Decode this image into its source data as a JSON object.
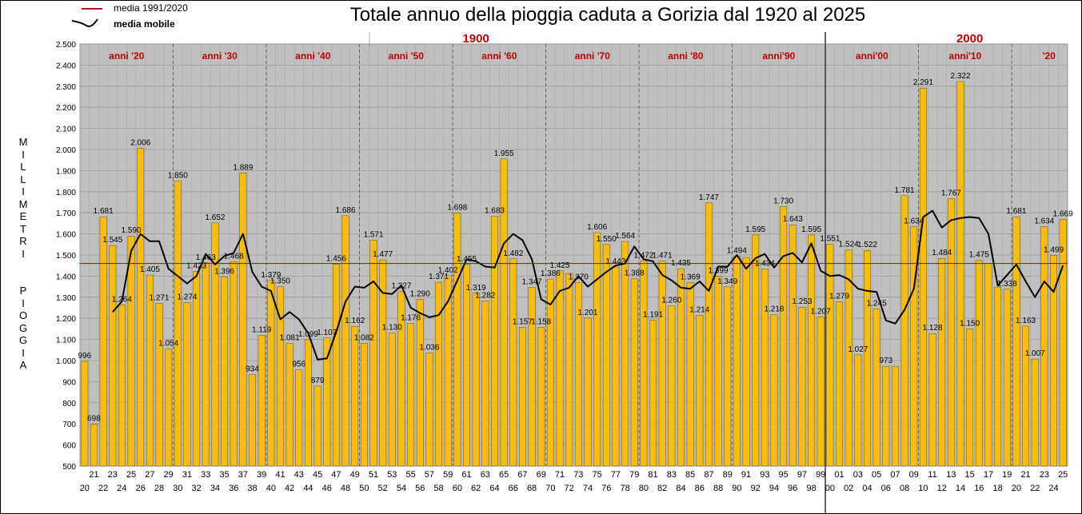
{
  "chart_data": {
    "type": "bar",
    "title": "Totale annuo della pioggia caduta a Gorizia dal 1920 al 2025",
    "ylabel": "MILLIMETRI PIOGGIA",
    "ylim": [
      500,
      2500
    ],
    "ytick_step": 100,
    "grid": true,
    "legend_position": "top-left",
    "legend": [
      {
        "label": "media 1991/2020",
        "kind": "line",
        "color": "#b11a1a"
      },
      {
        "label": "media mobile",
        "kind": "curve",
        "color": "#000000"
      }
    ],
    "mean_1991_2020": 1460,
    "bar_color": "#f9bd0f",
    "plot_background": "#c0c0c0",
    "x_labels": [
      "20",
      "21",
      "22",
      "23",
      "24",
      "25",
      "26",
      "27",
      "28",
      "29",
      "30",
      "31",
      "32",
      "33",
      "34",
      "35",
      "36",
      "37",
      "38",
      "39",
      "40",
      "41",
      "42",
      "43",
      "44",
      "45",
      "46",
      "47",
      "48",
      "49",
      "50",
      "51",
      "52",
      "53",
      "54",
      "55",
      "56",
      "57",
      "58",
      "59",
      "60",
      "61",
      "62",
      "63",
      "64",
      "65",
      "66",
      "67",
      "68",
      "69",
      "70",
      "71",
      "72",
      "73",
      "74",
      "75",
      "76",
      "77",
      "78",
      "79",
      "80",
      "81",
      "82",
      "83",
      "84",
      "85",
      "86",
      "87",
      "88",
      "89",
      "90",
      "91",
      "92",
      "93",
      "94",
      "95",
      "96",
      "97",
      "98",
      "99",
      "00",
      "01",
      "02",
      "03",
      "04",
      "05",
      "06",
      "07",
      "08",
      "09",
      "10",
      "11",
      "12",
      "13",
      "14",
      "15",
      "16",
      "17",
      "18",
      "19",
      "20",
      "21",
      "22",
      "23",
      "24",
      "25"
    ],
    "values": [
      996,
      698,
      1681,
      1545,
      1264,
      1590,
      2006,
      1405,
      1271,
      1054,
      1850,
      1274,
      1423,
      1463,
      1652,
      1396,
      1468,
      1889,
      934,
      1119,
      1379,
      1350,
      1081,
      956,
      1099,
      879,
      1107,
      1456,
      1686,
      1162,
      1082,
      1571,
      1477,
      1130,
      1327,
      1176,
      1290,
      1036,
      1371,
      1402,
      1698,
      1455,
      1319,
      1282,
      1683,
      1955,
      1482,
      1157,
      1347,
      1158,
      1386,
      1425,
      1413,
      1370,
      1201,
      1606,
      1550,
      1443,
      1564,
      1388,
      1472,
      1191,
      1471,
      1260,
      1435,
      1369,
      1214,
      1747,
      1399,
      1349,
      1494,
      1488,
      1595,
      1434,
      1218,
      1730,
      1643,
      1253,
      1595,
      1207,
      1551,
      1279,
      1524,
      1027,
      1522,
      1245,
      973,
      973,
      1781,
      1634,
      2291,
      1128,
      1484,
      1767,
      2322,
      1150,
      1475,
      1460,
      1348,
      1338,
      1681,
      1163,
      1007,
      1634,
      1499,
      1669
    ],
    "value_labels": [
      "996",
      "698",
      "1.681",
      "1.545",
      "1.264",
      "1.590",
      "2.006",
      "1.405",
      "1.271",
      "1.054",
      "1.850",
      "1.274",
      "1.423",
      "1.463",
      "1.652",
      "1.396",
      "1.468",
      "1.889",
      "934",
      "1.119",
      "1.379",
      "1.350",
      "1.081",
      "956",
      "1.099",
      "879",
      "1.107",
      "1.456",
      "1.686",
      "1.162",
      "1.082",
      "1.571",
      "1.477",
      "1.130",
      "1.327",
      "1.176",
      "1.290",
      "1.036",
      "1.371",
      "1.402",
      "1.698",
      "1.455",
      "1.319",
      "1.282",
      "1.683",
      "1.955",
      "1.482",
      "1.157",
      "1.347",
      "1.158",
      "1.386",
      "1.425",
      "",
      "1.370",
      "1.201",
      "1.606",
      "1.550",
      "1.443",
      "1.564",
      "1.388",
      "1.472",
      "1.191",
      "1.471",
      "1.260",
      "1.435",
      "1.369",
      "1.214",
      "1.747",
      "1.399",
      "1.349",
      "1.494",
      "",
      "1.595",
      "1.434",
      "1.218",
      "1.730",
      "1.643",
      "1.253",
      "1.595",
      "1.207",
      "1.551",
      "1.279",
      "1.524",
      "1.027",
      "1.522",
      "1.245",
      "973",
      "",
      "1.781",
      "1.634",
      "2.291",
      "1.128",
      "1.484",
      "1.767",
      "2.322",
      "1.150",
      "1.475",
      "",
      "",
      "1.338",
      "1.681",
      "1.163",
      "1.007",
      "1.634",
      "1.499",
      "1.669"
    ],
    "moving_average": [
      null,
      null,
      null,
      1230,
      1280,
      1520,
      1600,
      1565,
      1565,
      1435,
      1400,
      1365,
      1400,
      1505,
      1455,
      1495,
      1510,
      1600,
      1420,
      1350,
      1330,
      1195,
      1230,
      1195,
      1130,
      1005,
      1010,
      1135,
      1280,
      1350,
      1345,
      1375,
      1320,
      1315,
      1355,
      1250,
      1225,
      1205,
      1215,
      1280,
      1380,
      1480,
      1470,
      1445,
      1440,
      1555,
      1600,
      1570,
      1480,
      1290,
      1265,
      1330,
      1345,
      1400,
      1350,
      1385,
      1420,
      1450,
      1460,
      1540,
      1480,
      1470,
      1405,
      1380,
      1345,
      1340,
      1375,
      1330,
      1445,
      1445,
      1500,
      1435,
      1485,
      1505,
      1440,
      1495,
      1510,
      1465,
      1555,
      1425,
      1400,
      1405,
      1385,
      1340,
      1330,
      1325,
      1190,
      1175,
      1240,
      1340,
      1680,
      1710,
      1630,
      1665,
      1675,
      1680,
      1675,
      1600,
      1355,
      1405,
      1455,
      1375,
      1300,
      1375,
      1325,
      1450
    ],
    "decade_labels": [
      {
        "label": "anni '20",
        "index": 4.5
      },
      {
        "label": "anni '30",
        "index": 14.5
      },
      {
        "label": "anni '40",
        "index": 24.5
      },
      {
        "label": "anni '50",
        "index": 34.5
      },
      {
        "label": "anni '60",
        "index": 44.5
      },
      {
        "label": "anni '70",
        "index": 54.5
      },
      {
        "label": "anni '80",
        "index": 64.5
      },
      {
        "label": "anni'90",
        "index": 74.5
      },
      {
        "label": "anni'00",
        "index": 84.5
      },
      {
        "label": "anni'10",
        "index": 94.5
      },
      {
        "label": "'20",
        "index": 103.5
      }
    ],
    "century_labels": [
      {
        "label": "1900",
        "index": 42
      },
      {
        "label": "2000",
        "index": 95
      }
    ]
  }
}
